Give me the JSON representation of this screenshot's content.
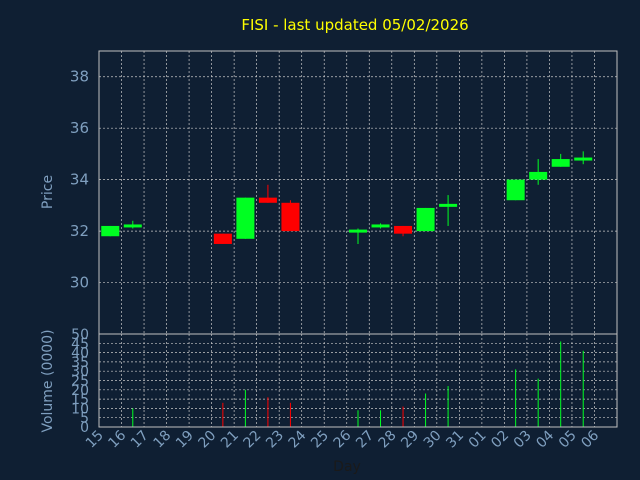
{
  "chart_data": [
    {
      "type": "candlestick",
      "title": "FISI - last updated 05/02/2026",
      "xlabel": "Day",
      "ylabel": "Price",
      "ylim": [
        28,
        39
      ],
      "yticks": [
        30,
        32,
        34,
        36,
        38
      ],
      "grid": true,
      "up_color": "#00ff22",
      "down_color": "#ff0000",
      "categories": [
        "15",
        "16",
        "17",
        "18",
        "19",
        "20",
        "21",
        "22",
        "23",
        "24",
        "25",
        "26",
        "27",
        "28",
        "29",
        "30",
        "31",
        "01",
        "02",
        "03",
        "04",
        "05",
        "06"
      ],
      "candles": [
        {
          "x": "15",
          "open": 31.8,
          "high": 32.2,
          "low": 31.8,
          "close": 32.2
        },
        {
          "x": "16",
          "open": 32.1,
          "high": 32.4,
          "low": 32.1,
          "close": 32.2
        },
        {
          "x": "20",
          "open": 31.9,
          "high": 31.9,
          "low": 31.5,
          "close": 31.5
        },
        {
          "x": "21",
          "open": 31.7,
          "high": 33.3,
          "low": 31.7,
          "close": 33.3
        },
        {
          "x": "22",
          "open": 33.3,
          "high": 33.8,
          "low": 33.1,
          "close": 33.1
        },
        {
          "x": "23",
          "open": 33.1,
          "high": 33.2,
          "low": 32.0,
          "close": 32.0
        },
        {
          "x": "26",
          "open": 31.9,
          "high": 32.1,
          "low": 31.5,
          "close": 32.0
        },
        {
          "x": "27",
          "open": 32.1,
          "high": 32.3,
          "low": 32.1,
          "close": 32.2
        },
        {
          "x": "28",
          "open": 32.2,
          "high": 32.2,
          "low": 31.8,
          "close": 31.9
        },
        {
          "x": "29",
          "open": 32.0,
          "high": 32.9,
          "low": 32.0,
          "close": 32.9
        },
        {
          "x": "30",
          "open": 32.9,
          "high": 33.4,
          "low": 32.2,
          "close": 33.0
        },
        {
          "x": "02",
          "open": 33.2,
          "high": 34.0,
          "low": 33.2,
          "close": 34.0
        },
        {
          "x": "03",
          "open": 34.0,
          "high": 34.8,
          "low": 33.8,
          "close": 34.3
        },
        {
          "x": "04",
          "open": 34.5,
          "high": 35.0,
          "low": 34.5,
          "close": 34.8
        },
        {
          "x": "05",
          "open": 34.7,
          "high": 35.1,
          "low": 34.6,
          "close": 34.8
        }
      ]
    },
    {
      "type": "bar",
      "ylabel": "Volume (0000)",
      "ylim": [
        0,
        50
      ],
      "yticks": [
        0,
        5,
        10,
        15,
        20,
        25,
        30,
        35,
        40,
        45,
        50
      ],
      "grid": true,
      "bars": [
        {
          "x": "16",
          "value": 10,
          "color": "#00ff22"
        },
        {
          "x": "20",
          "value": 13,
          "color": "#ff0000"
        },
        {
          "x": "21",
          "value": 20,
          "color": "#00ff22"
        },
        {
          "x": "22",
          "value": 16,
          "color": "#ff0000"
        },
        {
          "x": "23",
          "value": 13,
          "color": "#ff0000"
        },
        {
          "x": "26",
          "value": 9,
          "color": "#00ff22"
        },
        {
          "x": "27",
          "value": 9,
          "color": "#00ff22"
        },
        {
          "x": "28",
          "value": 11,
          "color": "#ff0000"
        },
        {
          "x": "29",
          "value": 18,
          "color": "#00ff22"
        },
        {
          "x": "30",
          "value": 22,
          "color": "#00ff22"
        },
        {
          "x": "02",
          "value": 31,
          "color": "#00ff22"
        },
        {
          "x": "03",
          "value": 26,
          "color": "#00ff22"
        },
        {
          "x": "04",
          "value": 46,
          "color": "#00ff22"
        },
        {
          "x": "05",
          "value": 41,
          "color": "#00ff22"
        }
      ]
    }
  ]
}
